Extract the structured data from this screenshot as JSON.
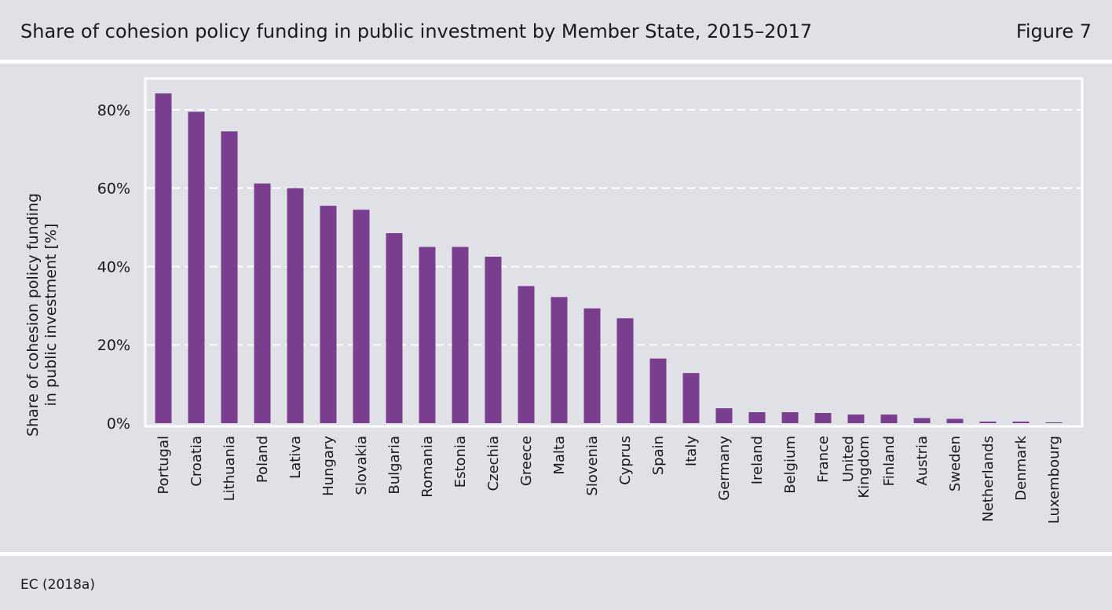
{
  "header": {
    "title": "Share of cohesion policy funding in public investment by Member State,  2015–2017",
    "figure_label": "Figure 7"
  },
  "footer": {
    "source": "EC (2018a)"
  },
  "colors": {
    "bar": "#7a3e8e",
    "background": "#e0e1e7",
    "frame": "#ffffff",
    "grid": "#ffffff"
  },
  "chart_data": {
    "type": "bar",
    "title": "Share of cohesion policy funding in public investment by Member State,  2015–2017",
    "ylabel_lines": [
      "Share of cohesion policy funding",
      "in public investment [%]"
    ],
    "xlabel": "",
    "ylim": [
      0,
      88
    ],
    "yticks": [
      0,
      20,
      40,
      60,
      80
    ],
    "ytick_labels": [
      "0%",
      "20%",
      "40%",
      "60%",
      "80%"
    ],
    "grid": "horizontal dashed",
    "legend": "none",
    "categories": [
      [
        "Portugal"
      ],
      [
        "Croatia"
      ],
      [
        "Lithuania"
      ],
      [
        "Poland"
      ],
      [
        "Lativa"
      ],
      [
        "Hungary"
      ],
      [
        "Slovakia"
      ],
      [
        "Bulgaria"
      ],
      [
        "Romania"
      ],
      [
        "Estonia"
      ],
      [
        "Czechia"
      ],
      [
        "Greece"
      ],
      [
        "Malta"
      ],
      [
        "Slovenia"
      ],
      [
        "Cyprus"
      ],
      [
        "Spain"
      ],
      [
        "Italy"
      ],
      [
        "Germany"
      ],
      [
        "Ireland"
      ],
      [
        "Belgium"
      ],
      [
        "France"
      ],
      [
        "United",
        "Kingdom"
      ],
      [
        "Finland"
      ],
      [
        "Austria"
      ],
      [
        "Sweden"
      ],
      [
        "Netherlands"
      ],
      [
        "Denmark"
      ],
      [
        "Luxembourg"
      ]
    ],
    "values": [
      84.2,
      79.5,
      74.5,
      61.2,
      60.0,
      55.5,
      54.5,
      48.5,
      45.0,
      45.0,
      42.5,
      35.0,
      32.2,
      29.3,
      26.8,
      16.5,
      12.8,
      3.8,
      2.8,
      2.8,
      2.6,
      2.2,
      2.2,
      1.3,
      1.1,
      0.4,
      0.4,
      0.1
    ]
  }
}
